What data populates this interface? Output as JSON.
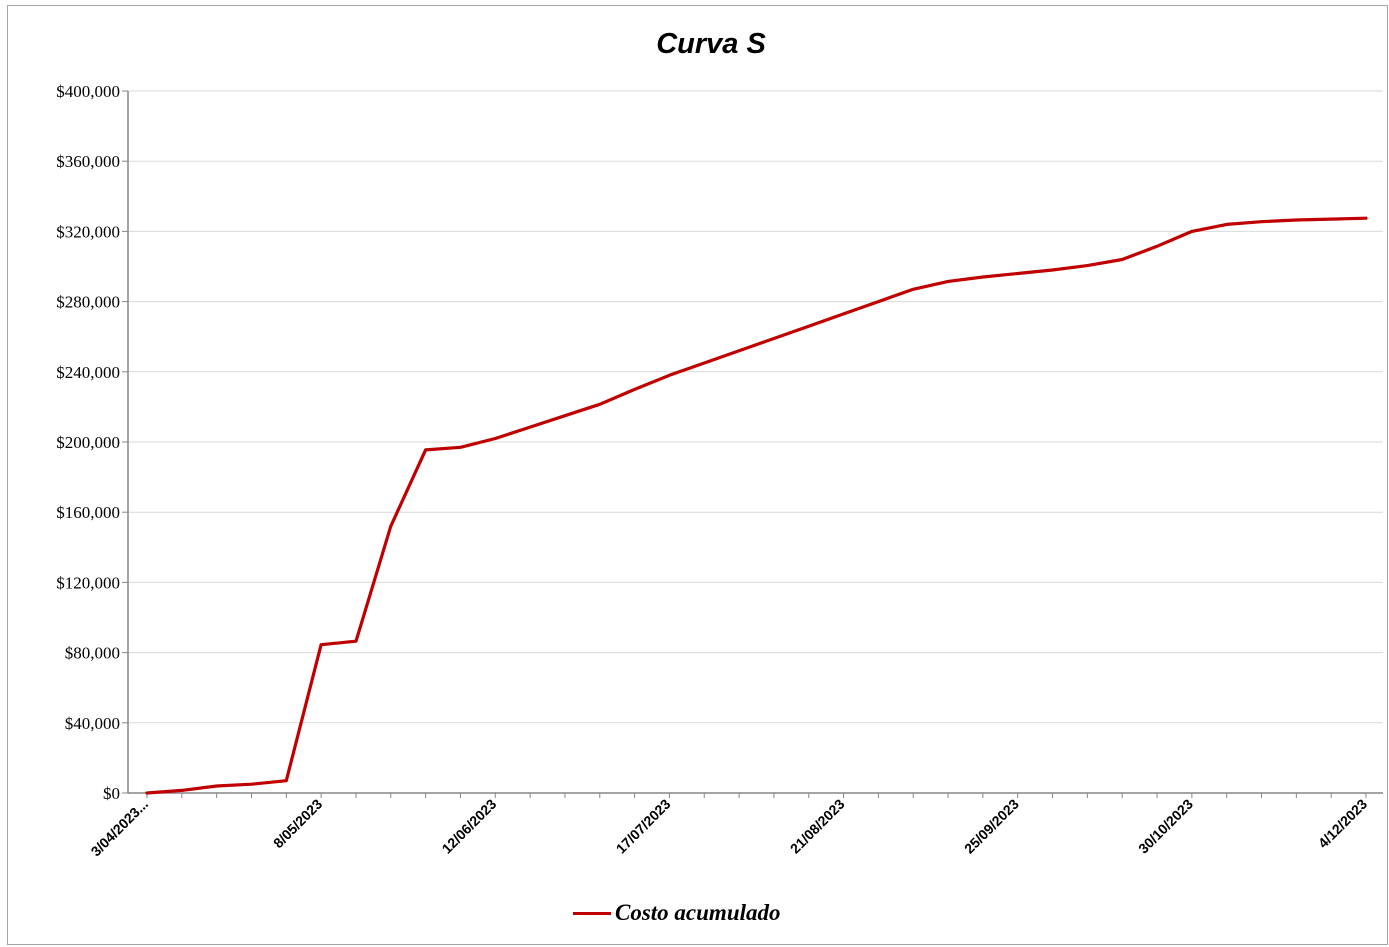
{
  "chart_data": {
    "type": "line",
    "title": "Curva S",
    "xlabel": "",
    "ylabel": "",
    "ylim": [
      0,
      400000
    ],
    "yticks": [
      "$0",
      "$40,000",
      "$80,000",
      "$120,000",
      "$160,000",
      "$200,000",
      "$240,000",
      "$280,000",
      "$320,000",
      "$360,000",
      "$400,000"
    ],
    "xticks": [
      "3/04/2023...",
      "8/05/2023",
      "12/06/2023",
      "17/07/2023",
      "21/08/2023",
      "25/09/2023",
      "30/10/2023",
      "4/12/2023"
    ],
    "grid": true,
    "legend": "bottom",
    "series": [
      {
        "name": "Costo acumulado",
        "color": "#c00000",
        "x": [
          "2023-04-03",
          "2023-04-10",
          "2023-04-17",
          "2023-04-24",
          "2023-05-01",
          "2023-05-08",
          "2023-05-15",
          "2023-05-22",
          "2023-05-29",
          "2023-06-05",
          "2023-06-12",
          "2023-06-19",
          "2023-06-26",
          "2023-07-03",
          "2023-07-10",
          "2023-07-17",
          "2023-07-24",
          "2023-07-31",
          "2023-08-07",
          "2023-08-14",
          "2023-08-21",
          "2023-08-28",
          "2023-09-04",
          "2023-09-11",
          "2023-09-18",
          "2023-09-25",
          "2023-10-02",
          "2023-10-09",
          "2023-10-16",
          "2023-10-23",
          "2023-10-30",
          "2023-11-06",
          "2023-11-13",
          "2023-11-20",
          "2023-11-27",
          "2023-12-04"
        ],
        "values": [
          0,
          1500,
          4000,
          5000,
          7000,
          84500,
          86500,
          152000,
          195500,
          197000,
          202000,
          208500,
          215000,
          221500,
          230000,
          238000,
          245000,
          252000,
          259000,
          266000,
          273000,
          280000,
          287000,
          291500,
          294000,
          296000,
          298000,
          300500,
          304000,
          311500,
          320000,
          324000,
          325500,
          326500,
          327000,
          327500
        ]
      }
    ]
  }
}
